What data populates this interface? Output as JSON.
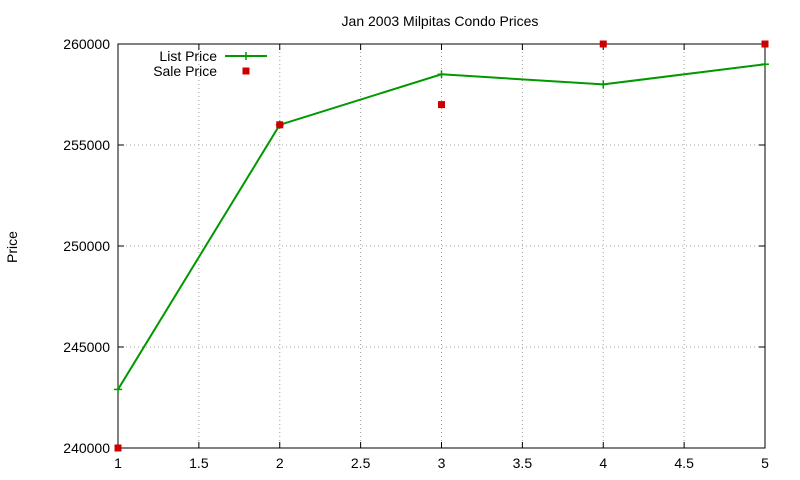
{
  "chart_data": {
    "type": "line",
    "title": "Jan 2003 Milpitas Condo Prices",
    "xlabel": "",
    "ylabel": "Price",
    "xlim": [
      1,
      5
    ],
    "ylim": [
      240000,
      260000
    ],
    "x_ticks": [
      "1",
      "1.5",
      "2",
      "2.5",
      "3",
      "3.5",
      "4",
      "4.5",
      "5"
    ],
    "y_ticks": [
      "240000",
      "245000",
      "250000",
      "255000",
      "260000"
    ],
    "grid": true,
    "legend_position": "top-left",
    "series": [
      {
        "name": "List Price",
        "style": "linespoints",
        "color": "#009900",
        "x": [
          1,
          2,
          3,
          4,
          5
        ],
        "values": [
          242900,
          256000,
          258500,
          258000,
          259000
        ]
      },
      {
        "name": "Sale Price",
        "style": "points",
        "color": "#cc0000",
        "x": [
          1,
          2,
          3,
          4,
          5
        ],
        "values": [
          240000,
          256000,
          257000,
          260000,
          260000
        ]
      }
    ]
  }
}
